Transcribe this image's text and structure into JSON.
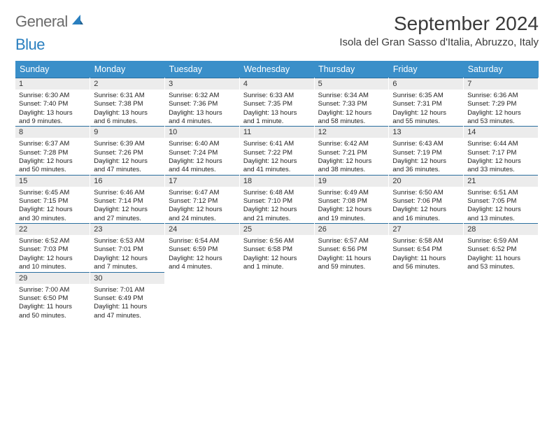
{
  "logo": {
    "word1": "General",
    "word2": "Blue",
    "icon_color": "#2a7fbf",
    "text_gray": "#6b6b6b"
  },
  "title": "September 2024",
  "location": "Isola del Gran Sasso d'Italia, Abruzzo, Italy",
  "colors": {
    "header_bg": "#3a8fc9",
    "header_text": "#ffffff",
    "daynum_bg": "#ececec",
    "daynum_border": "#2a6f9f",
    "body_text": "#222222",
    "page_bg": "#ffffff"
  },
  "day_headers": [
    "Sunday",
    "Monday",
    "Tuesday",
    "Wednesday",
    "Thursday",
    "Friday",
    "Saturday"
  ],
  "weeks": [
    [
      {
        "n": "1",
        "sr": "Sunrise: 6:30 AM",
        "ss": "Sunset: 7:40 PM",
        "dl1": "Daylight: 13 hours",
        "dl2": "and 9 minutes."
      },
      {
        "n": "2",
        "sr": "Sunrise: 6:31 AM",
        "ss": "Sunset: 7:38 PM",
        "dl1": "Daylight: 13 hours",
        "dl2": "and 6 minutes."
      },
      {
        "n": "3",
        "sr": "Sunrise: 6:32 AM",
        "ss": "Sunset: 7:36 PM",
        "dl1": "Daylight: 13 hours",
        "dl2": "and 4 minutes."
      },
      {
        "n": "4",
        "sr": "Sunrise: 6:33 AM",
        "ss": "Sunset: 7:35 PM",
        "dl1": "Daylight: 13 hours",
        "dl2": "and 1 minute."
      },
      {
        "n": "5",
        "sr": "Sunrise: 6:34 AM",
        "ss": "Sunset: 7:33 PM",
        "dl1": "Daylight: 12 hours",
        "dl2": "and 58 minutes."
      },
      {
        "n": "6",
        "sr": "Sunrise: 6:35 AM",
        "ss": "Sunset: 7:31 PM",
        "dl1": "Daylight: 12 hours",
        "dl2": "and 55 minutes."
      },
      {
        "n": "7",
        "sr": "Sunrise: 6:36 AM",
        "ss": "Sunset: 7:29 PM",
        "dl1": "Daylight: 12 hours",
        "dl2": "and 53 minutes."
      }
    ],
    [
      {
        "n": "8",
        "sr": "Sunrise: 6:37 AM",
        "ss": "Sunset: 7:28 PM",
        "dl1": "Daylight: 12 hours",
        "dl2": "and 50 minutes."
      },
      {
        "n": "9",
        "sr": "Sunrise: 6:39 AM",
        "ss": "Sunset: 7:26 PM",
        "dl1": "Daylight: 12 hours",
        "dl2": "and 47 minutes."
      },
      {
        "n": "10",
        "sr": "Sunrise: 6:40 AM",
        "ss": "Sunset: 7:24 PM",
        "dl1": "Daylight: 12 hours",
        "dl2": "and 44 minutes."
      },
      {
        "n": "11",
        "sr": "Sunrise: 6:41 AM",
        "ss": "Sunset: 7:22 PM",
        "dl1": "Daylight: 12 hours",
        "dl2": "and 41 minutes."
      },
      {
        "n": "12",
        "sr": "Sunrise: 6:42 AM",
        "ss": "Sunset: 7:21 PM",
        "dl1": "Daylight: 12 hours",
        "dl2": "and 38 minutes."
      },
      {
        "n": "13",
        "sr": "Sunrise: 6:43 AM",
        "ss": "Sunset: 7:19 PM",
        "dl1": "Daylight: 12 hours",
        "dl2": "and 36 minutes."
      },
      {
        "n": "14",
        "sr": "Sunrise: 6:44 AM",
        "ss": "Sunset: 7:17 PM",
        "dl1": "Daylight: 12 hours",
        "dl2": "and 33 minutes."
      }
    ],
    [
      {
        "n": "15",
        "sr": "Sunrise: 6:45 AM",
        "ss": "Sunset: 7:15 PM",
        "dl1": "Daylight: 12 hours",
        "dl2": "and 30 minutes."
      },
      {
        "n": "16",
        "sr": "Sunrise: 6:46 AM",
        "ss": "Sunset: 7:14 PM",
        "dl1": "Daylight: 12 hours",
        "dl2": "and 27 minutes."
      },
      {
        "n": "17",
        "sr": "Sunrise: 6:47 AM",
        "ss": "Sunset: 7:12 PM",
        "dl1": "Daylight: 12 hours",
        "dl2": "and 24 minutes."
      },
      {
        "n": "18",
        "sr": "Sunrise: 6:48 AM",
        "ss": "Sunset: 7:10 PM",
        "dl1": "Daylight: 12 hours",
        "dl2": "and 21 minutes."
      },
      {
        "n": "19",
        "sr": "Sunrise: 6:49 AM",
        "ss": "Sunset: 7:08 PM",
        "dl1": "Daylight: 12 hours",
        "dl2": "and 19 minutes."
      },
      {
        "n": "20",
        "sr": "Sunrise: 6:50 AM",
        "ss": "Sunset: 7:06 PM",
        "dl1": "Daylight: 12 hours",
        "dl2": "and 16 minutes."
      },
      {
        "n": "21",
        "sr": "Sunrise: 6:51 AM",
        "ss": "Sunset: 7:05 PM",
        "dl1": "Daylight: 12 hours",
        "dl2": "and 13 minutes."
      }
    ],
    [
      {
        "n": "22",
        "sr": "Sunrise: 6:52 AM",
        "ss": "Sunset: 7:03 PM",
        "dl1": "Daylight: 12 hours",
        "dl2": "and 10 minutes."
      },
      {
        "n": "23",
        "sr": "Sunrise: 6:53 AM",
        "ss": "Sunset: 7:01 PM",
        "dl1": "Daylight: 12 hours",
        "dl2": "and 7 minutes."
      },
      {
        "n": "24",
        "sr": "Sunrise: 6:54 AM",
        "ss": "Sunset: 6:59 PM",
        "dl1": "Daylight: 12 hours",
        "dl2": "and 4 minutes."
      },
      {
        "n": "25",
        "sr": "Sunrise: 6:56 AM",
        "ss": "Sunset: 6:58 PM",
        "dl1": "Daylight: 12 hours",
        "dl2": "and 1 minute."
      },
      {
        "n": "26",
        "sr": "Sunrise: 6:57 AM",
        "ss": "Sunset: 6:56 PM",
        "dl1": "Daylight: 11 hours",
        "dl2": "and 59 minutes."
      },
      {
        "n": "27",
        "sr": "Sunrise: 6:58 AM",
        "ss": "Sunset: 6:54 PM",
        "dl1": "Daylight: 11 hours",
        "dl2": "and 56 minutes."
      },
      {
        "n": "28",
        "sr": "Sunrise: 6:59 AM",
        "ss": "Sunset: 6:52 PM",
        "dl1": "Daylight: 11 hours",
        "dl2": "and 53 minutes."
      }
    ],
    [
      {
        "n": "29",
        "sr": "Sunrise: 7:00 AM",
        "ss": "Sunset: 6:50 PM",
        "dl1": "Daylight: 11 hours",
        "dl2": "and 50 minutes."
      },
      {
        "n": "30",
        "sr": "Sunrise: 7:01 AM",
        "ss": "Sunset: 6:49 PM",
        "dl1": "Daylight: 11 hours",
        "dl2": "and 47 minutes."
      },
      null,
      null,
      null,
      null,
      null
    ]
  ]
}
